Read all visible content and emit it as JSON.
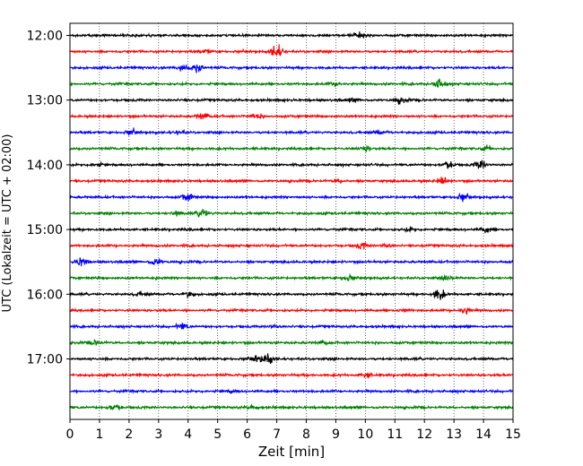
{
  "chart_data": {
    "type": "line",
    "title": "",
    "xlabel": "Zeit  [min]",
    "ylabel": "UTC (Lokalzeit = UTC + 02:00)",
    "xlim": [
      0,
      15
    ],
    "x_ticks": [
      0,
      1,
      2,
      3,
      4,
      5,
      6,
      7,
      8,
      9,
      10,
      11,
      12,
      13,
      14,
      15
    ],
    "x_tick_labels": [
      "0",
      "1",
      "2",
      "3",
      "4",
      "5",
      "6",
      "7",
      "8",
      "9",
      "10",
      "11",
      "12",
      "13",
      "14",
      "15"
    ],
    "y_tick_labels": [
      "12:00",
      "13:00",
      "14:00",
      "15:00",
      "16:00",
      "17:00"
    ],
    "rows_per_hour": 4,
    "minutes_per_row": 15,
    "colors_cycle": [
      "#000000",
      "#ff0000",
      "#0000ff",
      "#008000"
    ],
    "grid": "vertical dotted at each minute",
    "series": [
      {
        "start": "12:00",
        "color": "#000000",
        "events": [
          {
            "x": 9.8,
            "amp": 0.25
          }
        ]
      },
      {
        "start": "12:15",
        "color": "#ff0000",
        "events": [
          {
            "x": 7.0,
            "amp": 0.9
          },
          {
            "x": 4.6,
            "amp": 0.2
          }
        ]
      },
      {
        "start": "12:30",
        "color": "#0000ff",
        "events": [
          {
            "x": 3.8,
            "amp": 0.35
          },
          {
            "x": 4.3,
            "amp": 0.6
          }
        ]
      },
      {
        "start": "12:45",
        "color": "#008000",
        "events": [
          {
            "x": 12.5,
            "amp": 0.5
          },
          {
            "x": 9.0,
            "amp": 0.2
          }
        ]
      },
      {
        "start": "13:00",
        "color": "#000000",
        "events": [
          {
            "x": 11.2,
            "amp": 0.35
          },
          {
            "x": 9.6,
            "amp": 0.2
          }
        ]
      },
      {
        "start": "13:15",
        "color": "#ff0000",
        "events": [
          {
            "x": 4.5,
            "amp": 0.4
          },
          {
            "x": 6.3,
            "amp": 0.3
          }
        ]
      },
      {
        "start": "13:30",
        "color": "#0000ff",
        "events": [
          {
            "x": 2.1,
            "amp": 0.3
          },
          {
            "x": 3.7,
            "amp": 0.2
          },
          {
            "x": 10.5,
            "amp": 0.2
          }
        ]
      },
      {
        "start": "13:45",
        "color": "#008000",
        "events": [
          {
            "x": 10.0,
            "amp": 0.25
          },
          {
            "x": 14.1,
            "amp": 0.3
          }
        ]
      },
      {
        "start": "14:00",
        "color": "#000000",
        "events": [
          {
            "x": 12.8,
            "amp": 0.45
          },
          {
            "x": 13.9,
            "amp": 0.6
          },
          {
            "x": 0.9,
            "amp": 0.2
          }
        ]
      },
      {
        "start": "14:15",
        "color": "#ff0000",
        "events": [
          {
            "x": 12.6,
            "amp": 0.4
          },
          {
            "x": 9.1,
            "amp": 0.2
          }
        ]
      },
      {
        "start": "14:30",
        "color": "#0000ff",
        "events": [
          {
            "x": 4.0,
            "amp": 0.45
          },
          {
            "x": 13.3,
            "amp": 0.4
          }
        ]
      },
      {
        "start": "14:45",
        "color": "#008000",
        "events": [
          {
            "x": 4.5,
            "amp": 0.6
          },
          {
            "x": 3.6,
            "amp": 0.25
          }
        ]
      },
      {
        "start": "15:00",
        "color": "#000000",
        "events": [
          {
            "x": 14.1,
            "amp": 0.4
          },
          {
            "x": 11.5,
            "amp": 0.2
          }
        ]
      },
      {
        "start": "15:15",
        "color": "#ff0000",
        "events": [
          {
            "x": 9.9,
            "amp": 0.35
          },
          {
            "x": 10.7,
            "amp": 0.2
          }
        ]
      },
      {
        "start": "15:30",
        "color": "#0000ff",
        "events": [
          {
            "x": 0.4,
            "amp": 0.55
          },
          {
            "x": 2.9,
            "amp": 0.45
          }
        ]
      },
      {
        "start": "15:45",
        "color": "#008000",
        "events": [
          {
            "x": 9.4,
            "amp": 0.35
          },
          {
            "x": 12.8,
            "amp": 0.3
          }
        ]
      },
      {
        "start": "16:00",
        "color": "#000000",
        "events": [
          {
            "x": 12.5,
            "amp": 0.65
          },
          {
            "x": 4.0,
            "amp": 0.35
          },
          {
            "x": 2.4,
            "amp": 0.25
          }
        ]
      },
      {
        "start": "16:15",
        "color": "#ff0000",
        "events": [
          {
            "x": 13.4,
            "amp": 0.45
          },
          {
            "x": 11.3,
            "amp": 0.2
          }
        ]
      },
      {
        "start": "16:30",
        "color": "#0000ff",
        "events": [
          {
            "x": 3.8,
            "amp": 0.35
          },
          {
            "x": 6.9,
            "amp": 0.2
          }
        ]
      },
      {
        "start": "16:45",
        "color": "#008000",
        "events": [
          {
            "x": 0.9,
            "amp": 0.35
          },
          {
            "x": 8.6,
            "amp": 0.2
          }
        ]
      },
      {
        "start": "17:00",
        "color": "#000000",
        "events": [
          {
            "x": 6.7,
            "amp": 0.6
          },
          {
            "x": 6.3,
            "amp": 0.35
          }
        ]
      },
      {
        "start": "17:15",
        "color": "#ff0000",
        "events": [
          {
            "x": 10.0,
            "amp": 0.3
          }
        ]
      },
      {
        "start": "17:30",
        "color": "#0000ff",
        "events": [
          {
            "x": 5.5,
            "amp": 0.2
          }
        ]
      },
      {
        "start": "17:45",
        "color": "#008000",
        "events": [
          {
            "x": 1.5,
            "amp": 0.4
          },
          {
            "x": 6.2,
            "amp": 0.25
          }
        ]
      }
    ]
  }
}
